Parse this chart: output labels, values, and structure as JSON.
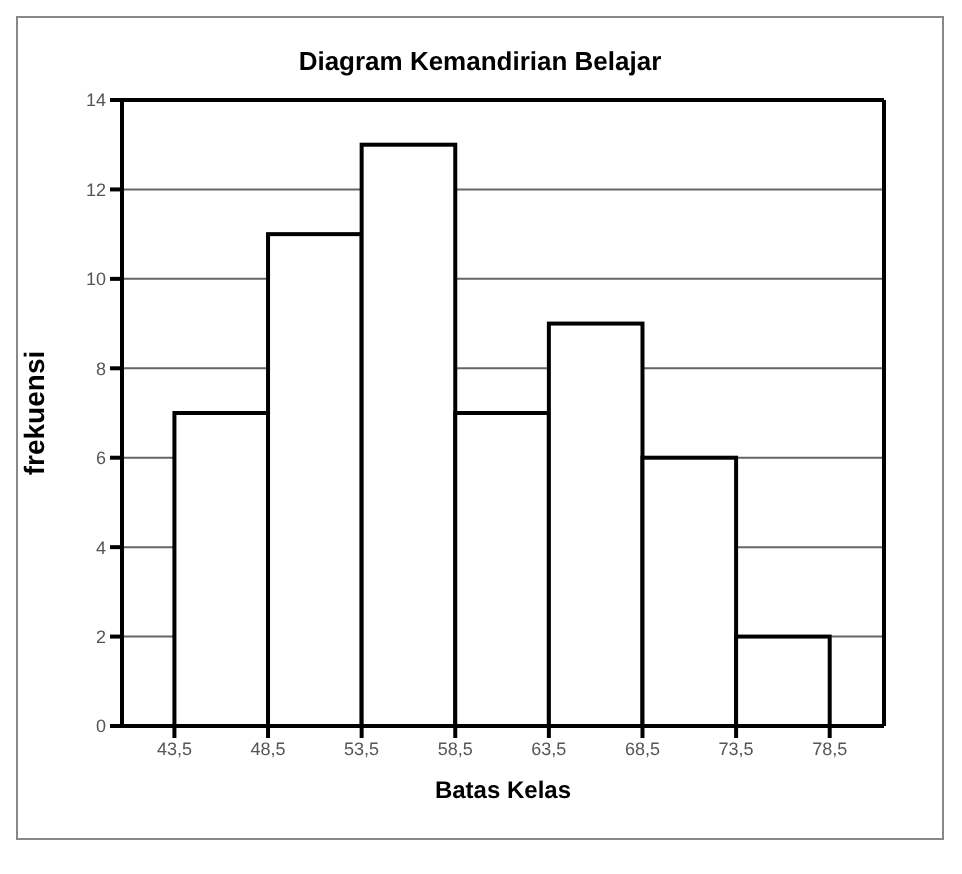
{
  "chart_data": {
    "type": "histogram",
    "title": "Diagram Kemandirian Belajar",
    "xlabel": "Batas Kelas",
    "ylabel": "frekuensi",
    "bins": [
      43.5,
      48.5,
      53.5,
      58.5,
      63.5,
      68.5,
      73.5,
      78.5
    ],
    "values": [
      7,
      11,
      13,
      7,
      9,
      6,
      2
    ],
    "color": "#ffffff",
    "xlim": [
      40.7,
      81.4
    ],
    "xticks": [
      {
        "value": 43.5,
        "label": "43,5"
      },
      {
        "value": 48.5,
        "label": "48,5"
      },
      {
        "value": 53.5,
        "label": "53,5"
      },
      {
        "value": 58.5,
        "label": "58,5"
      },
      {
        "value": 63.5,
        "label": "63,5"
      },
      {
        "value": 68.5,
        "label": "68,5"
      },
      {
        "value": 73.5,
        "label": "73,5"
      },
      {
        "value": 78.5,
        "label": "78,5"
      }
    ],
    "ylim": [
      0,
      14
    ],
    "yticks": [
      0,
      2,
      4,
      6,
      8,
      10,
      12,
      14
    ],
    "grid": "y"
  }
}
